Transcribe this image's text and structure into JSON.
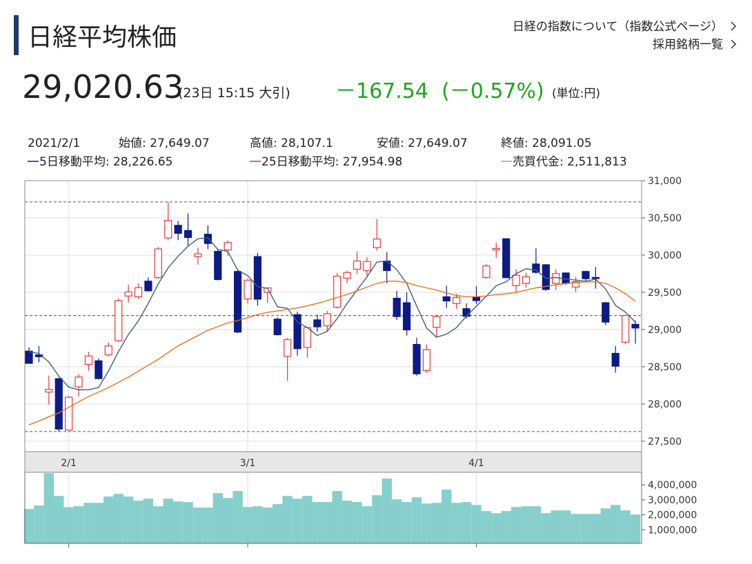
{
  "header": {
    "title": "日経平均株価",
    "links": [
      "日経の指数について（指数公式ページ）",
      "採用銘柄一覧"
    ],
    "price": "29,020.63",
    "time": "(23日 15:15 大引)",
    "change": "－167.54",
    "change_pct": "(－0.57%)",
    "unit": "(単位:円)"
  },
  "info": {
    "date": "2021/2/1",
    "open": "始値: 27,649.07",
    "high": "高値: 28,107.1",
    "low": "安値: 27,649.07",
    "close": "終値: 28,091.05",
    "ma5": "5日移動平均: 28,226.65",
    "ma25": "25日移動平均: 27,954.98",
    "volume": "売買代金: 2,511,813"
  },
  "chart_data": {
    "type": "candlestick",
    "categories": [
      null,
      null,
      null,
      null,
      "2/1",
      null,
      null,
      null,
      null,
      null,
      null,
      null,
      null,
      null,
      null,
      null,
      null,
      null,
      null,
      null,
      null,
      null,
      "3/1",
      null,
      null,
      null,
      null,
      null,
      null,
      null,
      null,
      null,
      null,
      null,
      null,
      null,
      null,
      null,
      null,
      null,
      null,
      null,
      null,
      null,
      null,
      "4/1",
      null,
      null,
      null,
      null,
      null,
      null,
      null,
      null,
      null,
      null,
      null,
      null,
      null,
      null,
      null,
      null
    ],
    "open": [
      28710,
      28660,
      28160,
      28340,
      27649.07,
      28230,
      28530,
      28580,
      28660,
      28850,
      29450,
      29440,
      29650,
      29700,
      30230,
      30400,
      30330,
      29980,
      30280,
      30050,
      30070,
      29780,
      29410,
      29980,
      29500,
      29140,
      28640,
      29200,
      28760,
      29130,
      29050,
      29300,
      29690,
      29810,
      29790,
      30100,
      29920,
      29420,
      29360,
      28800,
      28450,
      29030,
      29440,
      29350,
      29280,
      29440,
      29700,
      30070,
      30220,
      29590,
      29620,
      29880,
      29870,
      29620,
      29760,
      29570,
      29780,
      29700,
      29360,
      28680,
      28830,
      29070
    ],
    "high": [
      28760,
      28780,
      28380,
      28350,
      28107.1,
      28400,
      28700,
      28610,
      28830,
      29420,
      29600,
      29620,
      29700,
      30110,
      30714,
      30460,
      30560,
      30100,
      30400,
      30080,
      30200,
      29800,
      29680,
      30030,
      29560,
      29160,
      28890,
      29240,
      29030,
      29200,
      29250,
      29760,
      29790,
      30050,
      29970,
      30485,
      30040,
      29520,
      29500,
      28890,
      28800,
      29200,
      29590,
      29480,
      29350,
      29580,
      29880,
      30170,
      30220,
      29810,
      29760,
      30090,
      29880,
      29810,
      29770,
      29710,
      29790,
      29840,
      29370,
      28780,
      29200,
      29120
    ],
    "low": [
      28540,
      28560,
      27990,
      27630,
      27649.07,
      28100,
      28450,
      28330,
      28640,
      28830,
      29360,
      29410,
      29510,
      29680,
      30200,
      30200,
      30130,
      29870,
      30080,
      29660,
      29990,
      28950,
      29350,
      29320,
      29360,
      28920,
      28310,
      28650,
      28620,
      28970,
      28980,
      29280,
      29620,
      29750,
      29720,
      30060,
      29620,
      29130,
      28920,
      28380,
      28420,
      28900,
      29290,
      29280,
      29150,
      29340,
      29680,
      29960,
      29690,
      29500,
      29560,
      29750,
      29520,
      29530,
      29600,
      29500,
      29650,
      29550,
      29060,
      28420,
      28800,
      28810
    ],
    "close": [
      28546,
      28635,
      28197,
      27663,
      28091.05,
      28362,
      28646,
      28341,
      28779,
      29388,
      29505,
      29562,
      29520,
      30084,
      30467,
      30292,
      30236,
      30017,
      30156,
      29671,
      30168,
      28966,
      29663,
      29408,
      29559,
      28930,
      28864,
      28743,
      29027,
      29036,
      29211,
      29717,
      29766,
      29921,
      29914,
      30216,
      29792,
      29174,
      28995,
      28405,
      28729,
      29176,
      29384,
      29432,
      29178,
      29388,
      29854,
      30089,
      29696,
      29730,
      29708,
      29768,
      29538,
      29751,
      29620,
      29642,
      29683,
      29685,
      29100,
      28508,
      29188,
      29020.63
    ],
    "up_color": "#e53935",
    "down_color": "#0d1b86",
    "lines": [
      {
        "color": "#3e5f80",
        "values": [
          28702,
          28678,
          28566,
          28373,
          28226.65,
          28190,
          28192,
          28221,
          28444,
          28703,
          28932,
          29115,
          29351,
          29612,
          29828,
          29985,
          30120,
          30219,
          30234,
          30074,
          30050,
          29796,
          29725,
          29575,
          29553,
          29305,
          29285,
          29101,
          29025,
          28920,
          28976,
          29147,
          29351,
          29530,
          29706,
          29907,
          29922,
          29803,
          29618,
          29316,
          29019,
          28896,
          28938,
          29025,
          29180,
          29312,
          29447,
          29588,
          29641,
          29751,
          29815,
          29798,
          29688,
          29699,
          29677,
          29664,
          29647,
          29676,
          29546,
          29324,
          29233,
          29100
        ]
      },
      {
        "color": "#e8711a",
        "values": [
          27720,
          27770,
          27830,
          27880,
          27954.98,
          28030,
          28100,
          28160,
          28220,
          28290,
          28360,
          28440,
          28520,
          28600,
          28690,
          28780,
          28850,
          28920,
          28990,
          29040,
          29090,
          29120,
          29160,
          29200,
          29230,
          29250,
          29270,
          29290,
          29320,
          29350,
          29390,
          29430,
          29470,
          29520,
          29570,
          29620,
          29650,
          29650,
          29630,
          29590,
          29560,
          29530,
          29490,
          29460,
          29440,
          29440,
          29450,
          29470,
          29480,
          29500,
          29530,
          29560,
          29580,
          29600,
          29620,
          29630,
          29640,
          29640,
          29620,
          29560,
          29480,
          29378
        ]
      }
    ],
    "ylim": [
      27360,
      31000
    ],
    "yticks": [
      {
        "value": 27500,
        "label": "27,500"
      },
      {
        "value": 28000,
        "label": "28,000"
      },
      {
        "value": 28500,
        "label": "28,500"
      },
      {
        "value": 29000,
        "label": "29,000"
      },
      {
        "value": 29500,
        "label": "29,500"
      },
      {
        "value": 30000,
        "label": "30,000"
      },
      {
        "value": 30500,
        "label": "30,500"
      },
      {
        "value": 31000,
        "label": "31,000"
      }
    ],
    "reference_lines": [
      {
        "value": 30714,
        "color": "#777777"
      },
      {
        "value": 27630,
        "color": "#777777"
      },
      {
        "value": 29188.17,
        "color": "#e53935"
      }
    ],
    "grid": true,
    "volume": {
      "color": "#86cfcc",
      "values": [
        2390000,
        2620000,
        4780000,
        3260000,
        2511813,
        2570000,
        2800000,
        2800000,
        3220000,
        3400000,
        3220000,
        2940000,
        3080000,
        2570000,
        3080000,
        2890000,
        2850000,
        2480000,
        2480000,
        3450000,
        3120000,
        3590000,
        2520000,
        2570000,
        2480000,
        2710000,
        3260000,
        3080000,
        3260000,
        2850000,
        2850000,
        3590000,
        2940000,
        2850000,
        2570000,
        3310000,
        4420000,
        3030000,
        2850000,
        3170000,
        2750000,
        2800000,
        3680000,
        2800000,
        2850000,
        2660000,
        2250000,
        2110000,
        2250000,
        2520000,
        2570000,
        2570000,
        2110000,
        2290000,
        2290000,
        2060000,
        2060000,
        2060000,
        2430000,
        2660000,
        2290000,
        2020000
      ],
      "ylim": [
        0,
        4840000
      ],
      "yticks": [
        {
          "value": 1000000,
          "label": "1,000,000"
        },
        {
          "value": 2000000,
          "label": "2,000,000"
        },
        {
          "value": 3000000,
          "label": "3,000,000"
        },
        {
          "value": 4000000,
          "label": "4,000,000"
        }
      ]
    }
  }
}
